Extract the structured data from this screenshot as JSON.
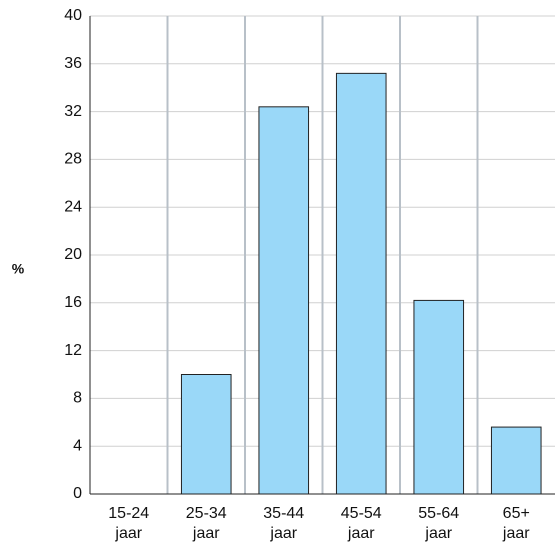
{
  "chart_data": {
    "type": "bar",
    "y_label": "%",
    "categories": [
      "15-24 jaar",
      "25-34 jaar",
      "35-44 jaar",
      "45-54 jaar",
      "55-64 jaar",
      "65+ jaar"
    ],
    "values": [
      0,
      10,
      32.4,
      35.2,
      16.2,
      5.6
    ],
    "color": "#9ad8f8",
    "ylim": [
      0,
      40
    ],
    "yticks": [
      0,
      4,
      8,
      12,
      16,
      20,
      24,
      28,
      32,
      36,
      40
    ],
    "grid": true
  }
}
